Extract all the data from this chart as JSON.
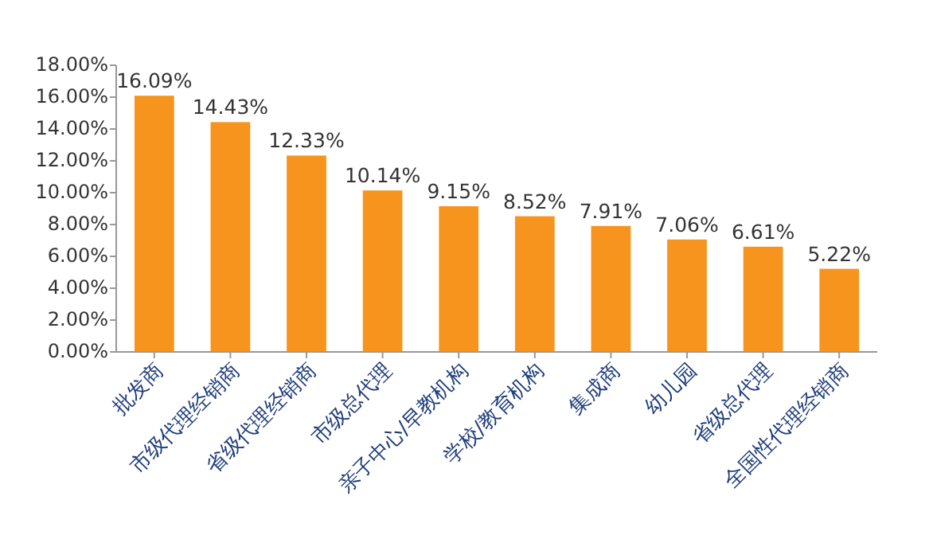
{
  "chart_data": {
    "type": "bar",
    "categories": [
      "批发商",
      "市级代理经销商",
      "省级代理经销商",
      "市级总代理",
      "亲子中心/早教机构",
      "学校/教育机构",
      "集成商",
      "幼儿园",
      "省级总代理",
      "全国性代理经销商"
    ],
    "values": [
      16.09,
      14.43,
      12.33,
      10.14,
      9.15,
      8.52,
      7.91,
      7.06,
      6.61,
      5.22
    ],
    "value_labels": [
      "16.09%",
      "14.43%",
      "12.33%",
      "10.14%",
      "9.15%",
      "8.52%",
      "7.91%",
      "7.06%",
      "6.61%",
      "5.22%"
    ],
    "color": "#f7941d",
    "ylim": [
      0,
      18
    ],
    "yticks": [
      {
        "value": 0,
        "label": "0.00%"
      },
      {
        "value": 2,
        "label": "2.00%"
      },
      {
        "value": 4,
        "label": "4.00%"
      },
      {
        "value": 6,
        "label": "6.00%"
      },
      {
        "value": 8,
        "label": "8.00%"
      },
      {
        "value": 10,
        "label": "10.00%"
      },
      {
        "value": 12,
        "label": "12.00%"
      },
      {
        "value": 14,
        "label": "14.00%"
      },
      {
        "value": 16,
        "label": "16.00%"
      },
      {
        "value": 18,
        "label": "18.00%"
      }
    ],
    "grid": false
  }
}
